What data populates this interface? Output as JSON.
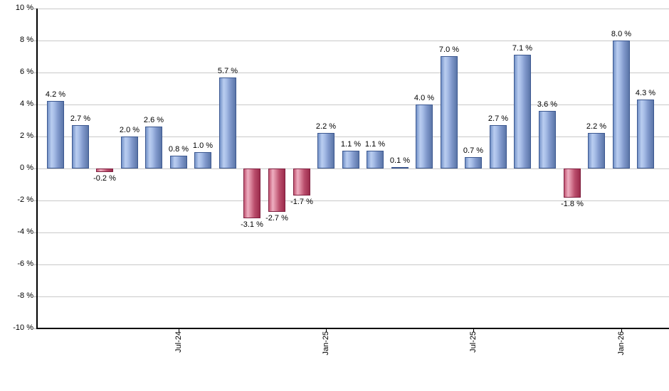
{
  "chart_data": {
    "type": "bar",
    "values": [
      4.2,
      2.7,
      -0.2,
      2.0,
      2.6,
      0.8,
      1.0,
      5.7,
      -3.1,
      -2.7,
      -1.7,
      2.2,
      1.1,
      1.1,
      0.1,
      4.0,
      7.0,
      0.7,
      2.7,
      7.1,
      3.6,
      -1.8,
      2.2,
      8.0,
      4.3
    ],
    "bar_labels": [
      "4.2 %",
      "2.7 %",
      "-0.2 %",
      "2.0 %",
      "2.6 %",
      "0.8 %",
      "1.0 %",
      "5.7 %",
      "-3.1 %",
      "-2.7 %",
      "-1.7 %",
      "2.2 %",
      "1.1 %",
      "1.1 %",
      "0.1 %",
      "4.0 %",
      "7.0 %",
      "0.7 %",
      "2.7 %",
      "7.1 %",
      "3.6 %",
      "-1.8 %",
      "2.2 %",
      "8.0 %",
      "4.3 %"
    ],
    "x_ticks": [
      {
        "bar_index": 5,
        "label": "Jul-24"
      },
      {
        "bar_index": 11,
        "label": "Jan-25"
      },
      {
        "bar_index": 17,
        "label": "Jul-25"
      },
      {
        "bar_index": 23,
        "label": "Jan-26"
      }
    ],
    "y_ticks": [
      {
        "value": 10,
        "label": "10 %"
      },
      {
        "value": 8,
        "label": "8 %"
      },
      {
        "value": 6,
        "label": "6 %"
      },
      {
        "value": 4,
        "label": "4 %"
      },
      {
        "value": 2,
        "label": "2 %"
      },
      {
        "value": 0,
        "label": "0 %"
      },
      {
        "value": -2,
        "label": "-2 %"
      },
      {
        "value": -4,
        "label": "-4 %"
      },
      {
        "value": -6,
        "label": "-6 %"
      },
      {
        "value": -8,
        "label": "-8 %"
      },
      {
        "value": -10,
        "label": "-10 %"
      }
    ],
    "ylim": [
      -10,
      10
    ],
    "grid": true,
    "legend": false,
    "colors": {
      "positive_gradient": [
        "#7492c8",
        "#b9cdf0",
        "#a9bfe8",
        "#8199cc",
        "#5b76a8"
      ],
      "positive_border": "#3c5890",
      "negative_gradient": [
        "#c25573",
        "#eeafc1",
        "#dd8ba1",
        "#bb4e6d",
        "#9b2c4c"
      ],
      "negative_border": "#7f2040",
      "gridline": "#c9c9c9",
      "axis": "#000000",
      "label_text": "#000000",
      "background": "#ffffff"
    }
  }
}
